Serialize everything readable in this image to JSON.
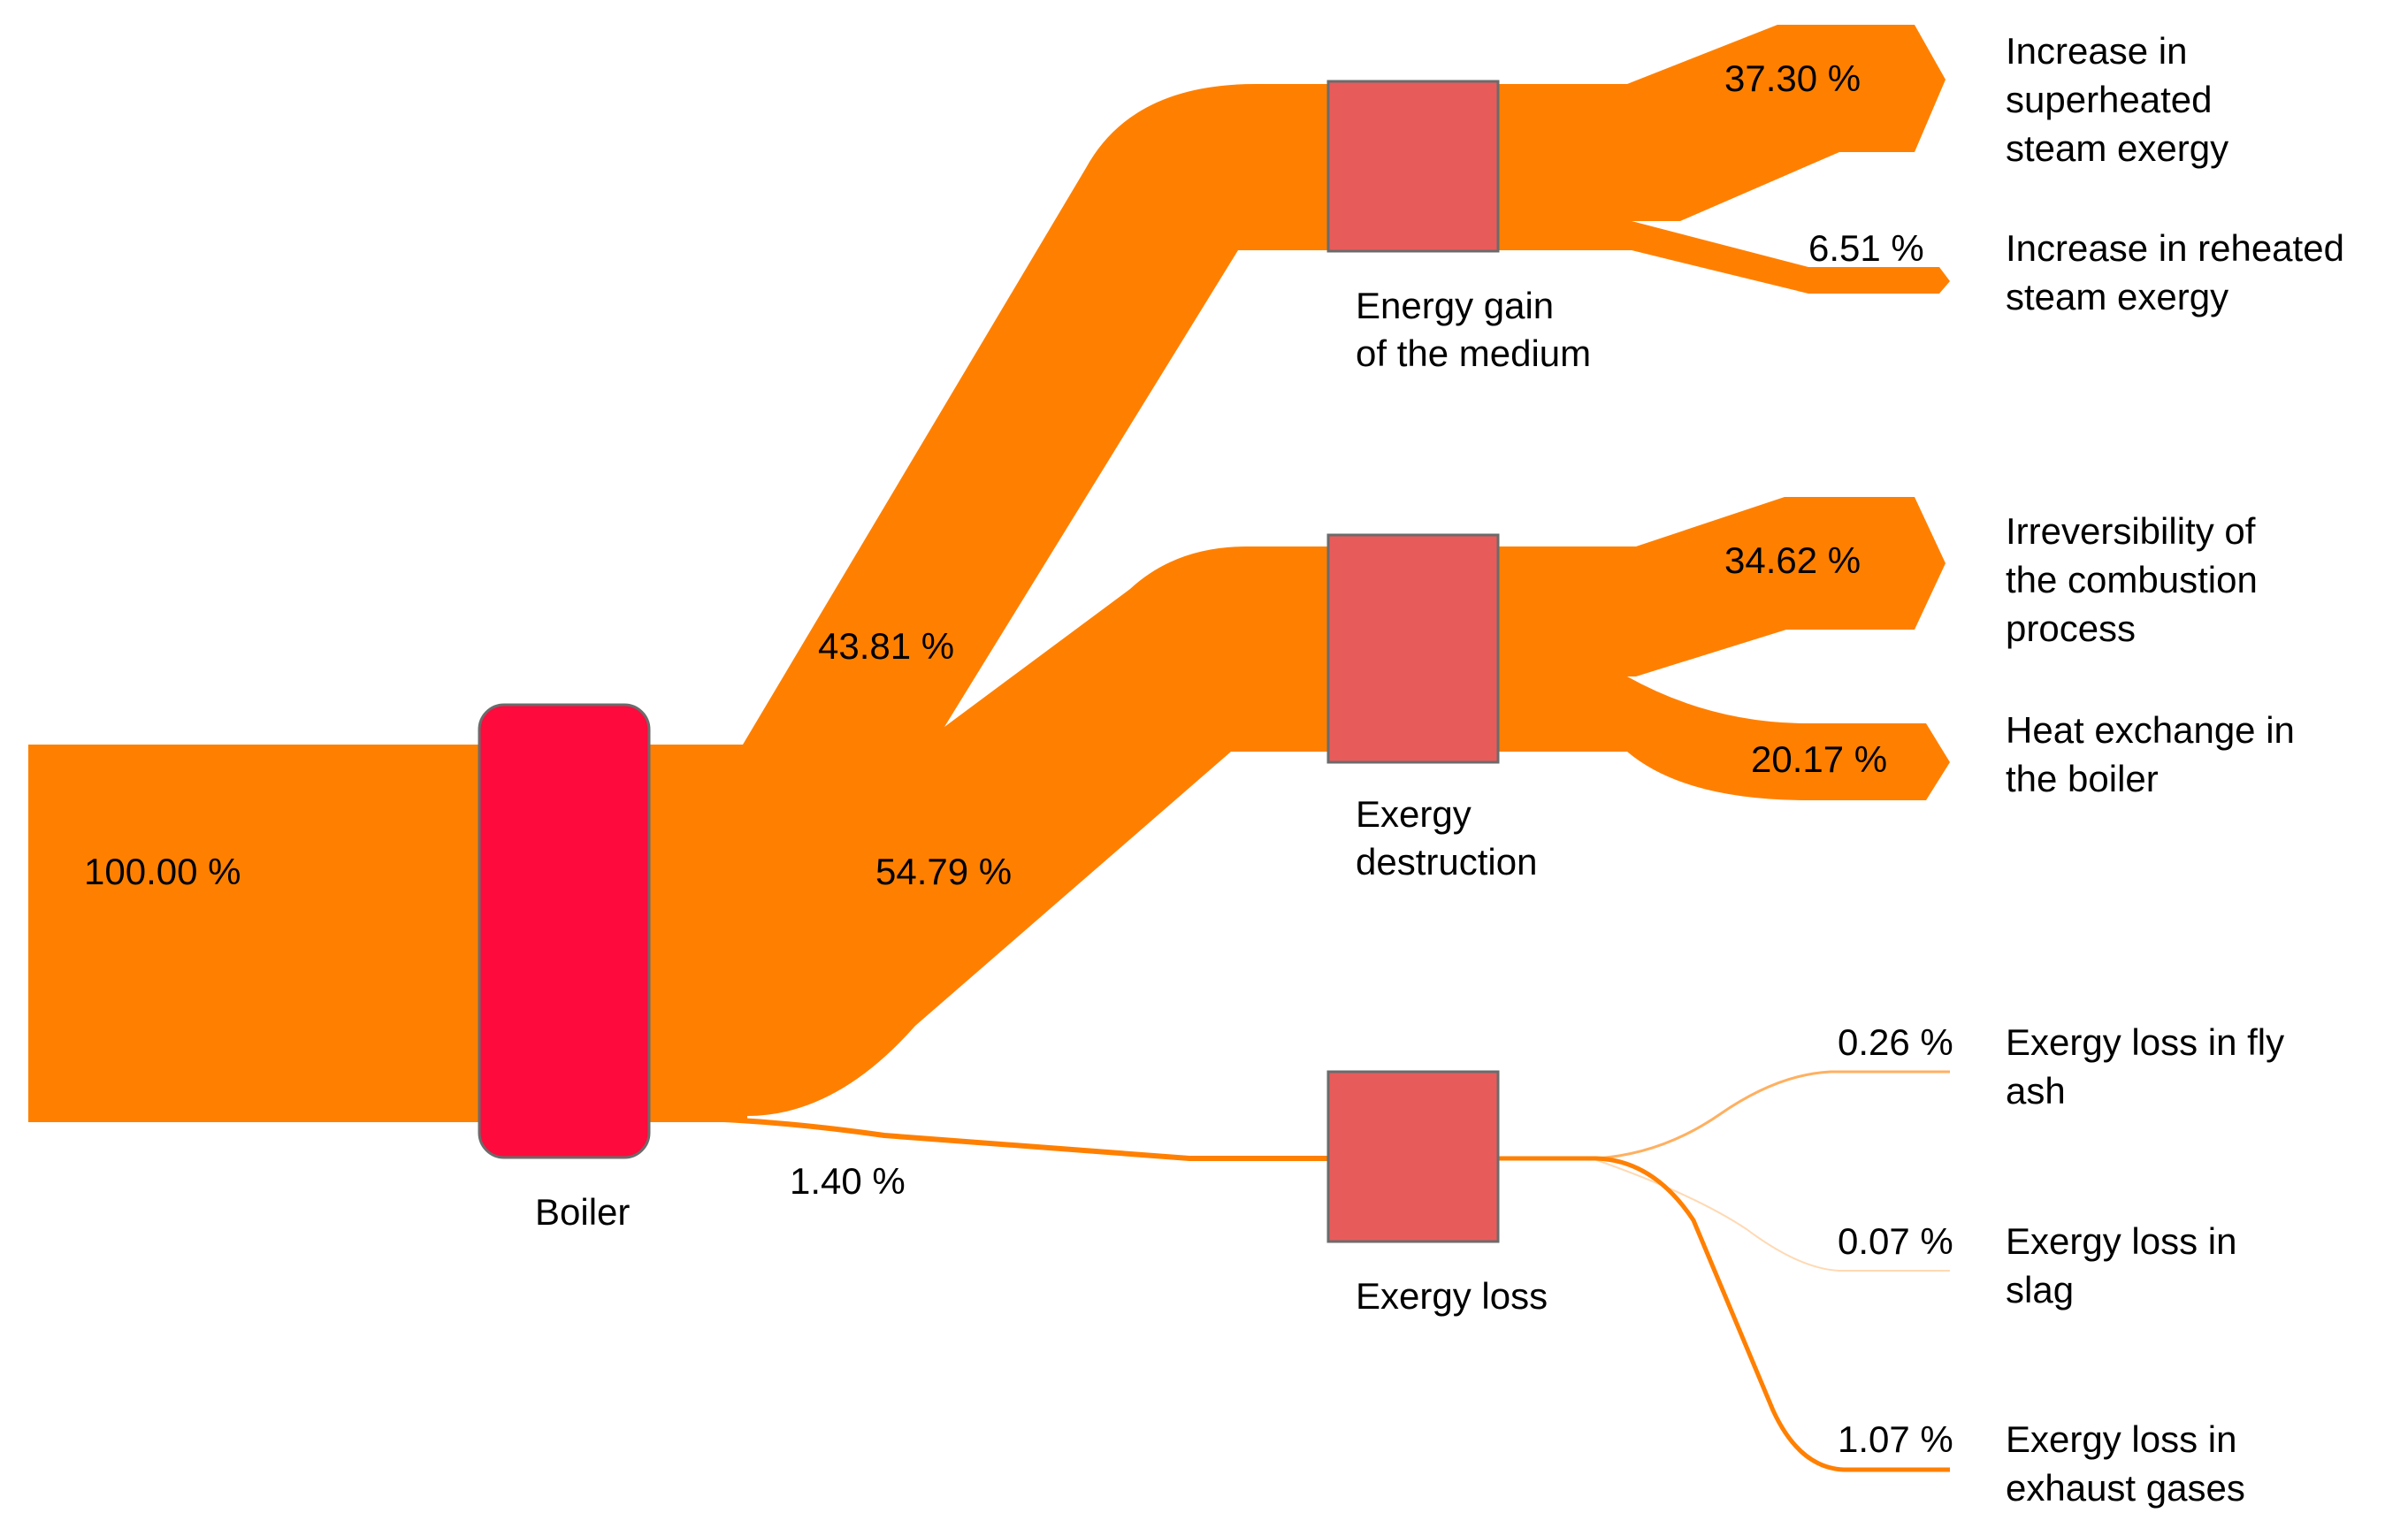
{
  "colors": {
    "flow": "#ff8000",
    "main_node": "#ff0a3c",
    "node": "#e85b5b",
    "node_border": "#6b6b6b"
  },
  "nodes": {
    "boiler": "Boiler",
    "energy_gain": [
      "Energy gain",
      "of the medium"
    ],
    "exergy_destruction": [
      "Exergy",
      "destruction"
    ],
    "exergy_loss": "Exergy loss"
  },
  "outputs": {
    "superheated": [
      "Increase in",
      "superheated",
      "steam exergy"
    ],
    "reheated": [
      "Increase in reheated",
      "steam exergy"
    ],
    "irreversibility": [
      "Irreversibility of",
      "the combustion",
      "process"
    ],
    "heat_exchange": [
      "Heat exchange in",
      "the boiler"
    ],
    "fly_ash": [
      "Exergy loss in fly",
      "ash"
    ],
    "slag": [
      "Exergy loss in",
      "slag"
    ],
    "exhaust": [
      "Exergy loss in",
      "exhaust gases"
    ]
  },
  "values": {
    "input": "100.00 %",
    "energy_gain": "43.81 %",
    "exergy_destruction": "54.79 %",
    "exergy_loss": "1.40 %",
    "superheated": "37.30 %",
    "reheated": "6.51 %",
    "irreversibility": "34.62 %",
    "heat_exchange": "20.17 %",
    "fly_ash": "0.26 %",
    "slag": "0.07 %",
    "exhaust": "1.07 %"
  }
}
